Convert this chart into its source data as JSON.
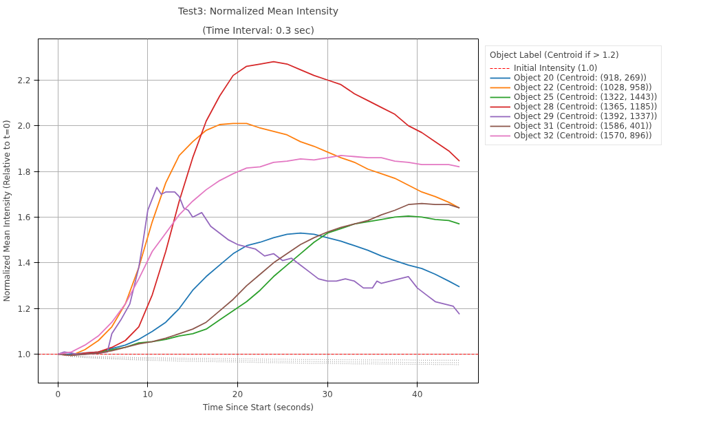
{
  "chart_data": {
    "type": "line",
    "title": "Test3: Normalized Mean Intensity",
    "subtitle": "(Time Interval: 0.3 sec)",
    "xlabel": "Time Since Start (seconds)",
    "ylabel": "Normalized Mean Intensity (Relative to t=0)",
    "legend_title": "Object Label (Centroid if > 1.2)",
    "x": [
      0,
      1.5,
      3,
      4.5,
      6,
      7.5,
      9,
      10.5,
      12,
      13.5,
      15,
      16.5,
      18,
      19.5,
      21,
      22.5,
      24,
      25.5,
      27,
      28.5,
      30,
      31.5,
      33,
      34.5,
      36,
      37.5,
      39,
      40.5,
      42,
      43.5,
      44.7
    ],
    "series": [
      {
        "name": "Object 20 (Centroid: (918, 269))",
        "color": "#1f77b4",
        "values": [
          1.0,
          1.0,
          1.005,
          1.01,
          1.025,
          1.04,
          1.065,
          1.1,
          1.14,
          1.2,
          1.28,
          1.34,
          1.39,
          1.44,
          1.475,
          1.49,
          1.51,
          1.525,
          1.53,
          1.525,
          1.51,
          1.495,
          1.475,
          1.455,
          1.43,
          1.41,
          1.39,
          1.375,
          1.35,
          1.32,
          1.295
        ]
      },
      {
        "name": "Object 22 (Centroid: (1028, 958))",
        "color": "#ff7f0e",
        "values": [
          1.0,
          0.995,
          1.02,
          1.06,
          1.12,
          1.22,
          1.38,
          1.58,
          1.75,
          1.87,
          1.93,
          1.98,
          2.005,
          2.01,
          2.01,
          1.99,
          1.975,
          1.96,
          1.93,
          1.91,
          1.885,
          1.86,
          1.84,
          1.81,
          1.79,
          1.77,
          1.74,
          1.71,
          1.69,
          1.665,
          1.64
        ]
      },
      {
        "name": "Object 25 (Centroid: (1322, 1443))",
        "color": "#2ca02c",
        "values": [
          null,
          null,
          null,
          1.01,
          1.02,
          1.03,
          1.05,
          1.055,
          1.065,
          1.08,
          1.09,
          1.11,
          1.15,
          1.19,
          1.23,
          1.28,
          1.34,
          1.39,
          1.44,
          1.49,
          1.53,
          1.55,
          1.57,
          1.58,
          1.59,
          1.6,
          1.605,
          1.6,
          1.59,
          1.585,
          1.57
        ]
      },
      {
        "name": "Object 28 (Centroid: (1365, 1185))",
        "color": "#d62728",
        "values": [
          1.0,
          0.995,
          1.005,
          1.01,
          1.03,
          1.06,
          1.12,
          1.26,
          1.45,
          1.67,
          1.86,
          2.02,
          2.13,
          2.22,
          2.26,
          2.27,
          2.28,
          2.27,
          2.245,
          2.22,
          2.2,
          2.18,
          2.14,
          2.11,
          2.08,
          2.05,
          2.0,
          1.97,
          1.93,
          1.89,
          1.845
        ]
      },
      {
        "name": "Object 29 (Centroid: (1392, 1337))",
        "color": "#9467bd",
        "x": [
          0,
          0.7,
          1.5,
          2.2,
          3,
          4.5,
          5.5,
          6,
          7,
          8,
          9,
          9.5,
          10,
          10.5,
          11,
          11.5,
          12,
          13,
          13.5,
          14,
          14.5,
          15,
          16,
          17,
          18,
          19,
          20,
          22,
          23,
          24,
          25,
          26,
          27,
          28,
          29,
          30,
          31,
          32,
          33,
          34,
          35,
          35.5,
          36,
          37,
          38,
          39,
          40,
          41,
          42,
          43,
          44,
          44.7
        ],
        "values": [
          1.0,
          1.01,
          1.005,
          1.0,
          1.0,
          1.005,
          1.01,
          1.09,
          1.15,
          1.22,
          1.38,
          1.5,
          1.63,
          1.68,
          1.73,
          1.7,
          1.71,
          1.71,
          1.69,
          1.64,
          1.63,
          1.6,
          1.62,
          1.56,
          1.53,
          1.5,
          1.48,
          1.46,
          1.43,
          1.44,
          1.41,
          1.42,
          1.39,
          1.36,
          1.33,
          1.32,
          1.32,
          1.33,
          1.32,
          1.29,
          1.29,
          1.32,
          1.31,
          1.32,
          1.33,
          1.34,
          1.29,
          1.26,
          1.23,
          1.22,
          1.21,
          1.175
        ]
      },
      {
        "name": "Object 31 (Centroid: (1586, 401))",
        "color": "#8c564b",
        "values": [
          1.0,
          0.995,
          1.0,
          1.005,
          1.015,
          1.03,
          1.045,
          1.055,
          1.07,
          1.09,
          1.11,
          1.14,
          1.19,
          1.24,
          1.3,
          1.35,
          1.4,
          1.44,
          1.48,
          1.51,
          1.535,
          1.555,
          1.57,
          1.585,
          1.61,
          1.63,
          1.655,
          1.66,
          1.655,
          1.655,
          1.64
        ]
      },
      {
        "name": "Object 32 (Centroid: (1570, 896))",
        "color": "#e377c2",
        "values": [
          1.0,
          1.01,
          1.04,
          1.08,
          1.14,
          1.22,
          1.33,
          1.45,
          1.53,
          1.61,
          1.67,
          1.72,
          1.76,
          1.79,
          1.815,
          1.82,
          1.84,
          1.845,
          1.855,
          1.85,
          1.86,
          1.87,
          1.865,
          1.86,
          1.86,
          1.845,
          1.84,
          1.83,
          1.83,
          1.83,
          1.82
        ]
      },
      {
        "color": "#808080",
        "line_style": "dotted",
        "values": [
          1.0,
          0.995,
          0.99,
          0.99,
          0.988,
          0.987,
          0.985,
          0.985,
          0.984,
          0.983,
          0.982,
          0.982,
          0.981,
          0.98,
          0.98,
          0.979,
          0.978,
          0.978,
          0.977,
          0.977,
          0.976,
          0.976,
          0.976,
          0.975,
          0.975,
          0.975,
          0.975,
          0.974,
          0.974,
          0.974,
          0.974
        ]
      },
      {
        "color": "#808080",
        "line_style": "dotted",
        "values": [
          1.0,
          0.993,
          0.988,
          0.985,
          0.983,
          0.981,
          0.98,
          0.979,
          0.978,
          0.977,
          0.976,
          0.975,
          0.974,
          0.973,
          0.972,
          0.971,
          0.97,
          0.969,
          0.969,
          0.968,
          0.967,
          0.967,
          0.966,
          0.966,
          0.965,
          0.965,
          0.964,
          0.964,
          0.963,
          0.963,
          0.963
        ]
      },
      {
        "color": "#808080",
        "line_style": "dotted",
        "values": [
          1.0,
          0.99,
          0.985,
          0.982,
          0.979,
          0.977,
          0.975,
          0.973,
          0.972,
          0.97,
          0.969,
          0.968,
          0.967,
          0.966,
          0.965,
          0.964,
          0.963,
          0.962,
          0.961,
          0.96,
          0.96,
          0.959,
          0.958,
          0.958,
          0.957,
          0.957,
          0.956,
          0.956,
          0.955,
          0.955,
          0.954
        ]
      }
    ],
    "ref_lines": [
      {
        "axis": "y",
        "value": 1.0,
        "label": "Initial Intensity (1.0)",
        "color": "#ff0000",
        "line_style": "dashed"
      }
    ],
    "xlim": [
      -2.2,
      46.8
    ],
    "ylim": [
      0.874,
      2.38
    ],
    "xticks": [
      0,
      10,
      20,
      30,
      40
    ],
    "yticks": [
      {
        "value": 1.0,
        "label": "1.0"
      },
      {
        "value": 1.2,
        "label": "1.2"
      },
      {
        "value": 1.4,
        "label": "1.4"
      },
      {
        "value": 1.6,
        "label": "1.6"
      },
      {
        "value": 1.8,
        "label": "1.8"
      },
      {
        "value": 2.0,
        "label": "2.0"
      },
      {
        "value": 2.2,
        "label": "2.2"
      }
    ],
    "grid": true,
    "legend": "top right",
    "line_style": "solid"
  }
}
